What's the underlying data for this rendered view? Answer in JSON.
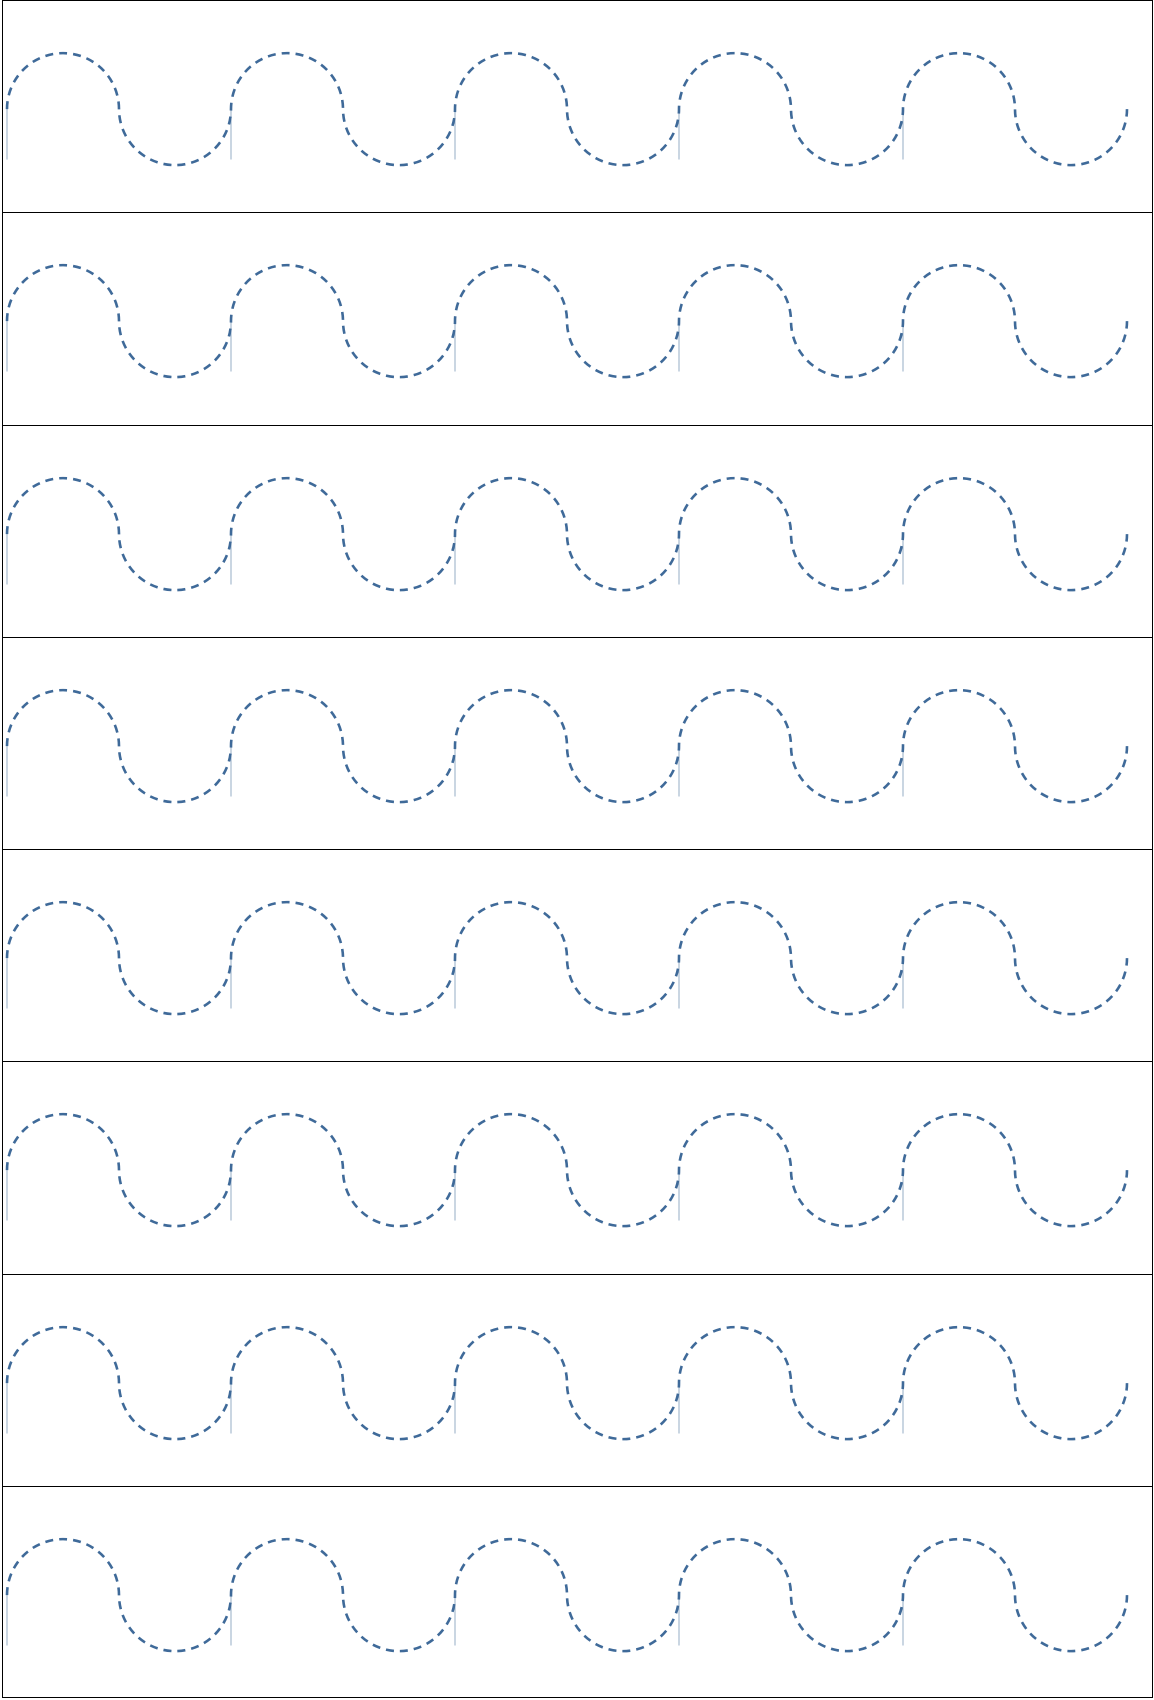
{
  "sheet": {
    "type": "wave-tracing-worksheet",
    "row_count": 8,
    "humps_per_row": 5,
    "line_color": "#3f6a99",
    "border_color": "#000000",
    "line_style": "dashed"
  }
}
